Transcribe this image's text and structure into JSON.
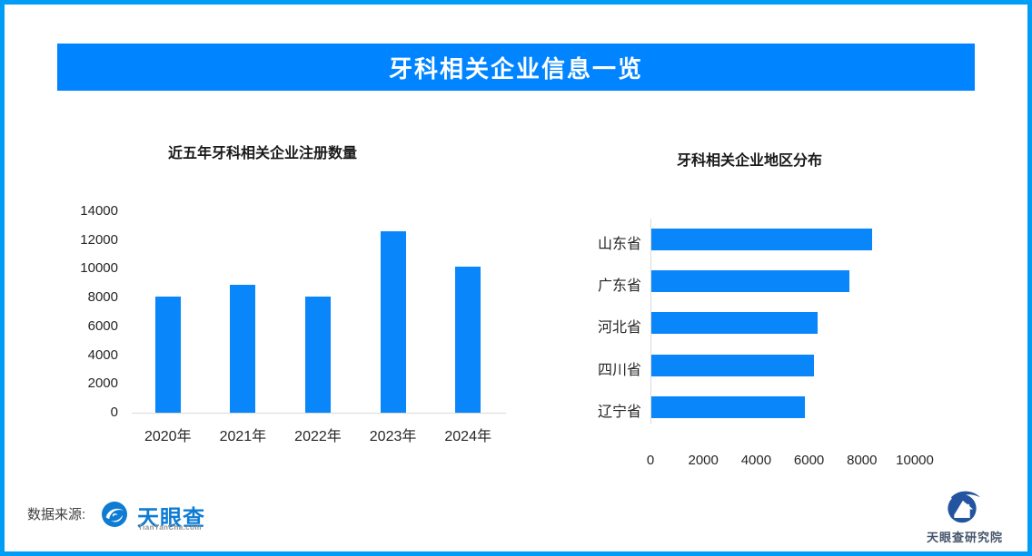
{
  "banner": {
    "title": "牙科相关企业信息一览",
    "bg_color": "#0084ff",
    "text_color": "#ffffff"
  },
  "page": {
    "border_color": "#009df7",
    "background": "#ffffff",
    "accent_blue": "#0886fa"
  },
  "chart_data": [
    {
      "type": "bar",
      "orientation": "vertical",
      "title": "近五年牙科相关企业注册数量",
      "categories": [
        "2020年",
        "2021年",
        "2022年",
        "2023年",
        "2024年"
      ],
      "values": [
        8050,
        8900,
        8100,
        12600,
        10150
      ],
      "xlabel": "",
      "ylabel": "",
      "ylim": [
        0,
        14000
      ],
      "yticks": [
        0,
        2000,
        4000,
        6000,
        8000,
        10000,
        12000,
        14000
      ],
      "grid": false,
      "legend": false,
      "bar_color": "#0886fa"
    },
    {
      "type": "bar",
      "orientation": "horizontal",
      "title": "牙科相关企业地区分布",
      "categories": [
        "山东省",
        "广东省",
        "河北省",
        "四川省",
        "辽宁省"
      ],
      "values": [
        8350,
        7500,
        6300,
        6150,
        5800
      ],
      "xlabel": "",
      "ylabel": "",
      "xlim": [
        0,
        10000
      ],
      "xticks": [
        0,
        2000,
        4000,
        6000,
        8000,
        10000
      ],
      "grid": false,
      "legend": false,
      "bar_color": "#0886fa"
    }
  ],
  "footer": {
    "source_label": "数据来源:",
    "tianyancha": {
      "wordmark": "天眼查",
      "domain": "TianYanCha.com",
      "brand_color": "#0e7cd2"
    },
    "research_institute": {
      "label": "天眼查研究院",
      "brand_color": "#23549f"
    }
  }
}
